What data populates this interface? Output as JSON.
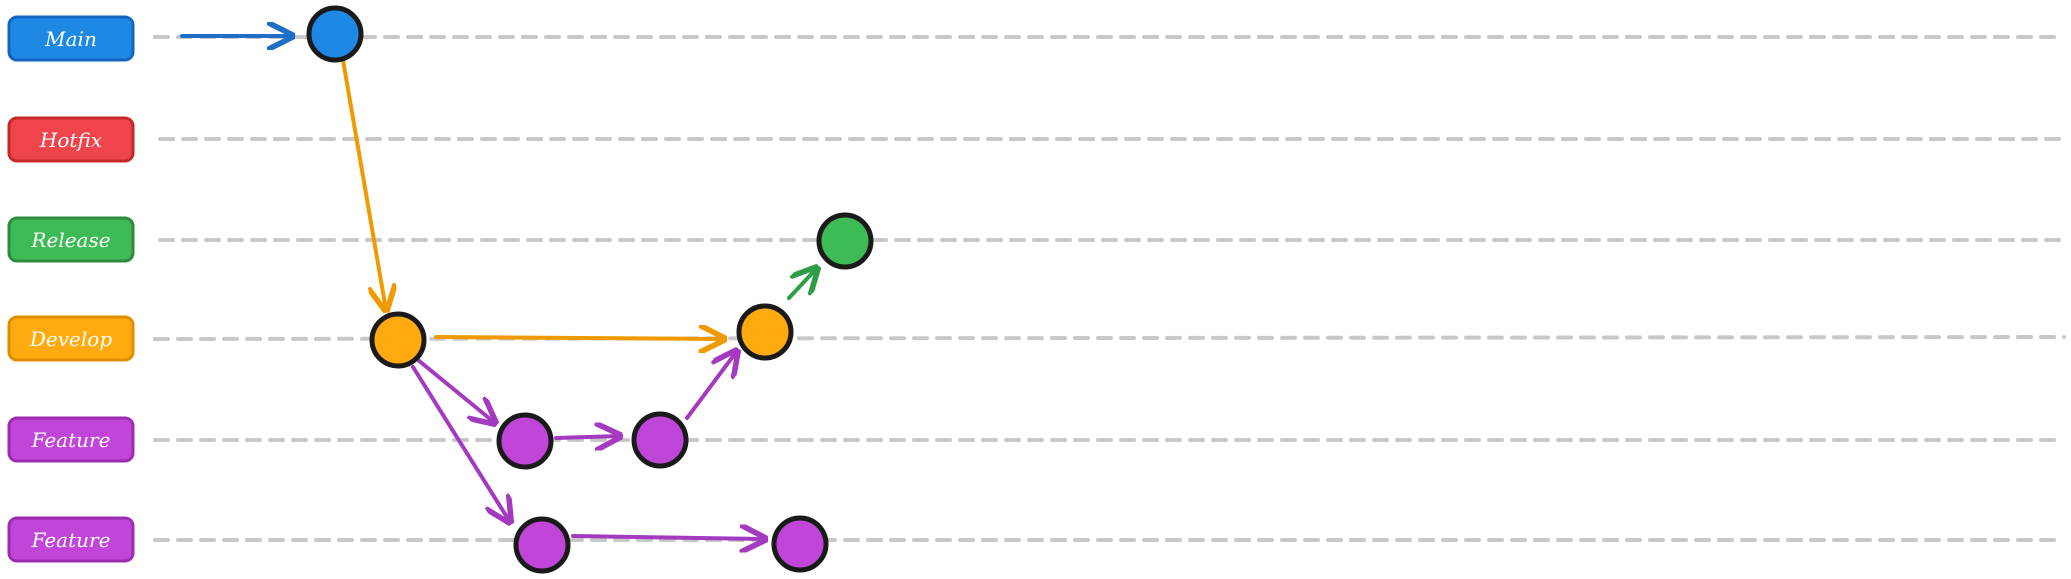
{
  "lanes": [
    {
      "id": "main",
      "label": "Main",
      "color": "#1e88e5",
      "border": "#1565c0"
    },
    {
      "id": "hotfix",
      "label": "Hotfix",
      "color": "#f0444c",
      "border": "#c62828"
    },
    {
      "id": "release",
      "label": "Release",
      "color": "#3dbb55",
      "border": "#2e8b40"
    },
    {
      "id": "develop",
      "label": "Develop",
      "color": "#ffab0f",
      "border": "#e08e00"
    },
    {
      "id": "feature1",
      "label": "Feature",
      "color": "#c145d8",
      "border": "#9c2db0"
    },
    {
      "id": "feature2",
      "label": "Feature",
      "color": "#c145d8",
      "border": "#9c2db0"
    }
  ],
  "commits": [
    {
      "id": "c-main",
      "lane": "main"
    },
    {
      "id": "c-dev1",
      "lane": "develop"
    },
    {
      "id": "c-f1a",
      "lane": "feature1"
    },
    {
      "id": "c-f1b",
      "lane": "feature1"
    },
    {
      "id": "c-dev2",
      "lane": "develop"
    },
    {
      "id": "c-rel",
      "lane": "release"
    },
    {
      "id": "c-f2a",
      "lane": "feature2"
    },
    {
      "id": "c-f2b",
      "lane": "feature2"
    }
  ],
  "edges": [
    {
      "from": "start",
      "to": "c-main",
      "color": "#1e6fc8"
    },
    {
      "from": "c-main",
      "to": "c-dev1",
      "color": "#f09a00"
    },
    {
      "from": "c-dev1",
      "to": "c-dev2",
      "color": "#f09a00"
    },
    {
      "from": "c-dev1",
      "to": "c-f1a",
      "color": "#a43ac0"
    },
    {
      "from": "c-dev1",
      "to": "c-f2a",
      "color": "#a43ac0"
    },
    {
      "from": "c-f1a",
      "to": "c-f1b",
      "color": "#a43ac0"
    },
    {
      "from": "c-f1b",
      "to": "c-dev2",
      "color": "#a43ac0"
    },
    {
      "from": "c-dev2",
      "to": "c-rel",
      "color": "#2e9e46"
    },
    {
      "from": "c-f2a",
      "to": "c-f2b",
      "color": "#a43ac0"
    }
  ]
}
